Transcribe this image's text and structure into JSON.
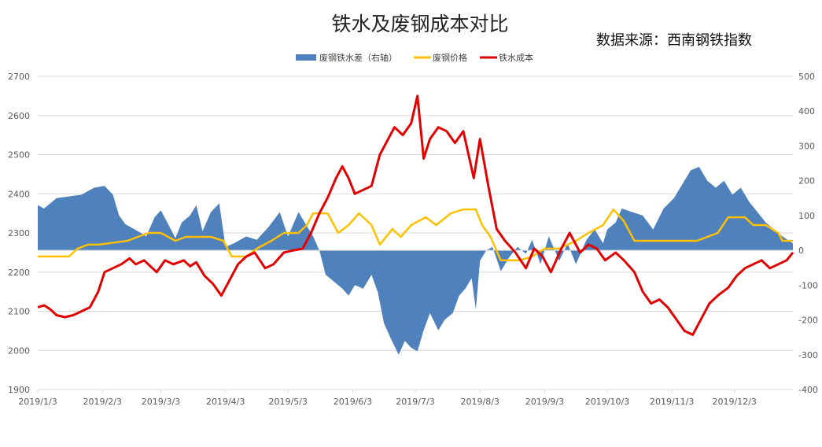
{
  "title": "铁水及废钢成本对比",
  "source": "数据来源：西南钢铁指数",
  "colors": {
    "diff": "#4f81bd",
    "scrap": "#ffc000",
    "iron": "#e00000",
    "grid": "#d9d9d9"
  },
  "chart_data": {
    "type": "line",
    "x_type": "date",
    "x_range": [
      "2019-01-03",
      "2019-12-31"
    ],
    "xticks": [
      "2019/1/3",
      "2019/2/3",
      "2019/3/3",
      "2019/4/3",
      "2019/5/3",
      "2019/6/3",
      "2019/7/3",
      "2019/8/3",
      "2019/9/3",
      "2019/10/3",
      "2019/11/3",
      "2019/12/3"
    ],
    "ylim_left": [
      1900,
      2700
    ],
    "yticks_left": [
      1900,
      2000,
      2100,
      2200,
      2300,
      2400,
      2500,
      2600,
      2700
    ],
    "ylim_right": [
      -400,
      500
    ],
    "yticks_right": [
      -400,
      -300,
      -200,
      -100,
      0,
      100,
      200,
      300,
      400,
      500
    ],
    "legend_position": "top",
    "grid": true,
    "series": [
      {
        "name": "废钢铁水差（右轴）",
        "type": "area",
        "axis": "right",
        "points": [
          [
            "2019-01-03",
            130
          ],
          [
            "2019-01-06",
            120
          ],
          [
            "2019-01-09",
            135
          ],
          [
            "2019-01-12",
            150
          ],
          [
            "2019-01-18",
            155
          ],
          [
            "2019-01-24",
            160
          ],
          [
            "2019-01-30",
            180
          ],
          [
            "2019-02-04",
            185
          ],
          [
            "2019-02-08",
            160
          ],
          [
            "2019-02-11",
            100
          ],
          [
            "2019-02-14",
            75
          ],
          [
            "2019-02-20",
            55
          ],
          [
            "2019-02-24",
            40
          ],
          [
            "2019-02-28",
            95
          ],
          [
            "2019-03-03",
            115
          ],
          [
            "2019-03-07",
            70
          ],
          [
            "2019-03-10",
            35
          ],
          [
            "2019-03-13",
            80
          ],
          [
            "2019-03-17",
            100
          ],
          [
            "2019-03-20",
            130
          ],
          [
            "2019-03-23",
            55
          ],
          [
            "2019-03-27",
            110
          ],
          [
            "2019-03-31",
            135
          ],
          [
            "2019-04-03",
            10
          ],
          [
            "2019-04-07",
            20
          ],
          [
            "2019-04-13",
            40
          ],
          [
            "2019-04-18",
            30
          ],
          [
            "2019-04-24",
            70
          ],
          [
            "2019-04-29",
            110
          ],
          [
            "2019-05-03",
            40
          ],
          [
            "2019-05-08",
            110
          ],
          [
            "2019-05-12",
            70
          ],
          [
            "2019-05-15",
            40
          ],
          [
            "2019-05-18",
            0
          ],
          [
            "2019-05-21",
            -70
          ],
          [
            "2019-05-25",
            -90
          ],
          [
            "2019-05-29",
            -110
          ],
          [
            "2019-06-01",
            -130
          ],
          [
            "2019-06-04",
            -100
          ],
          [
            "2019-06-08",
            -110
          ],
          [
            "2019-06-12",
            -70
          ],
          [
            "2019-06-15",
            -120
          ],
          [
            "2019-06-18",
            -210
          ],
          [
            "2019-06-21",
            -250
          ],
          [
            "2019-06-25",
            -300
          ],
          [
            "2019-06-28",
            -260
          ],
          [
            "2019-07-01",
            -280
          ],
          [
            "2019-07-04",
            -290
          ],
          [
            "2019-07-07",
            -230
          ],
          [
            "2019-07-10",
            -180
          ],
          [
            "2019-07-14",
            -230
          ],
          [
            "2019-07-17",
            -200
          ],
          [
            "2019-07-21",
            -180
          ],
          [
            "2019-07-24",
            -130
          ],
          [
            "2019-07-27",
            -110
          ],
          [
            "2019-07-30",
            -80
          ],
          [
            "2019-08-01",
            -170
          ],
          [
            "2019-08-03",
            -30
          ],
          [
            "2019-08-06",
            0
          ],
          [
            "2019-08-09",
            10
          ],
          [
            "2019-08-13",
            -60
          ],
          [
            "2019-08-17",
            -20
          ],
          [
            "2019-08-21",
            10
          ],
          [
            "2019-08-25",
            -10
          ],
          [
            "2019-08-28",
            30
          ],
          [
            "2019-09-01",
            -40
          ],
          [
            "2019-09-05",
            40
          ],
          [
            "2019-09-10",
            -30
          ],
          [
            "2019-09-14",
            20
          ],
          [
            "2019-09-18",
            -40
          ],
          [
            "2019-09-23",
            30
          ],
          [
            "2019-09-27",
            60
          ],
          [
            "2019-10-01",
            20
          ],
          [
            "2019-10-03",
            60
          ],
          [
            "2019-10-07",
            80
          ],
          [
            "2019-10-10",
            120
          ],
          [
            "2019-10-15",
            110
          ],
          [
            "2019-10-20",
            100
          ],
          [
            "2019-10-25",
            60
          ],
          [
            "2019-10-30",
            120
          ],
          [
            "2019-11-04",
            150
          ],
          [
            "2019-11-08",
            190
          ],
          [
            "2019-11-12",
            230
          ],
          [
            "2019-11-16",
            240
          ],
          [
            "2019-11-20",
            200
          ],
          [
            "2019-11-24",
            180
          ],
          [
            "2019-11-28",
            200
          ],
          [
            "2019-12-02",
            160
          ],
          [
            "2019-12-06",
            180
          ],
          [
            "2019-12-10",
            140
          ],
          [
            "2019-12-14",
            110
          ],
          [
            "2019-12-18",
            80
          ],
          [
            "2019-12-22",
            60
          ],
          [
            "2019-12-26",
            40
          ],
          [
            "2019-12-31",
            20
          ]
        ]
      },
      {
        "name": "废钢价格",
        "type": "line",
        "axis": "left",
        "points": [
          [
            "2019-01-03",
            2240
          ],
          [
            "2019-01-18",
            2240
          ],
          [
            "2019-01-22",
            2260
          ],
          [
            "2019-01-27",
            2270
          ],
          [
            "2019-02-01",
            2270
          ],
          [
            "2019-02-15",
            2280
          ],
          [
            "2019-02-25",
            2300
          ],
          [
            "2019-03-03",
            2300
          ],
          [
            "2019-03-10",
            2280
          ],
          [
            "2019-03-15",
            2290
          ],
          [
            "2019-03-27",
            2290
          ],
          [
            "2019-04-02",
            2280
          ],
          [
            "2019-04-06",
            2240
          ],
          [
            "2019-04-13",
            2240
          ],
          [
            "2019-04-18",
            2260
          ],
          [
            "2019-04-25",
            2280
          ],
          [
            "2019-05-01",
            2300
          ],
          [
            "2019-05-08",
            2300
          ],
          [
            "2019-05-12",
            2320
          ],
          [
            "2019-05-15",
            2350
          ],
          [
            "2019-05-22",
            2350
          ],
          [
            "2019-05-27",
            2300
          ],
          [
            "2019-06-01",
            2320
          ],
          [
            "2019-06-06",
            2350
          ],
          [
            "2019-06-12",
            2320
          ],
          [
            "2019-06-16",
            2270
          ],
          [
            "2019-06-22",
            2310
          ],
          [
            "2019-06-26",
            2290
          ],
          [
            "2019-07-01",
            2320
          ],
          [
            "2019-07-08",
            2340
          ],
          [
            "2019-07-13",
            2320
          ],
          [
            "2019-07-20",
            2350
          ],
          [
            "2019-07-26",
            2360
          ],
          [
            "2019-08-01",
            2360
          ],
          [
            "2019-08-04",
            2320
          ],
          [
            "2019-08-08",
            2290
          ],
          [
            "2019-08-13",
            2230
          ],
          [
            "2019-08-22",
            2230
          ],
          [
            "2019-08-28",
            2240
          ],
          [
            "2019-09-03",
            2260
          ],
          [
            "2019-09-10",
            2260
          ],
          [
            "2019-09-18",
            2280
          ],
          [
            "2019-09-24",
            2300
          ],
          [
            "2019-10-01",
            2320
          ],
          [
            "2019-10-06",
            2360
          ],
          [
            "2019-10-11",
            2330
          ],
          [
            "2019-10-16",
            2280
          ],
          [
            "2019-10-28",
            2280
          ],
          [
            "2019-11-15",
            2280
          ],
          [
            "2019-11-25",
            2300
          ],
          [
            "2019-11-30",
            2340
          ],
          [
            "2019-12-08",
            2340
          ],
          [
            "2019-12-12",
            2320
          ],
          [
            "2019-12-18",
            2320
          ],
          [
            "2019-12-24",
            2300
          ],
          [
            "2019-12-26",
            2280
          ],
          [
            "2019-12-31",
            2280
          ]
        ]
      },
      {
        "name": "铁水成本",
        "type": "line",
        "axis": "left",
        "points": [
          [
            "2019-01-03",
            2110
          ],
          [
            "2019-01-06",
            2115
          ],
          [
            "2019-01-09",
            2105
          ],
          [
            "2019-01-12",
            2090
          ],
          [
            "2019-01-16",
            2085
          ],
          [
            "2019-01-20",
            2090
          ],
          [
            "2019-01-24",
            2100
          ],
          [
            "2019-01-28",
            2110
          ],
          [
            "2019-02-01",
            2150
          ],
          [
            "2019-02-04",
            2200
          ],
          [
            "2019-02-08",
            2210
          ],
          [
            "2019-02-12",
            2220
          ],
          [
            "2019-02-16",
            2235
          ],
          [
            "2019-02-19",
            2220
          ],
          [
            "2019-02-23",
            2230
          ],
          [
            "2019-02-26",
            2215
          ],
          [
            "2019-03-01",
            2200
          ],
          [
            "2019-03-05",
            2230
          ],
          [
            "2019-03-09",
            2220
          ],
          [
            "2019-03-14",
            2230
          ],
          [
            "2019-03-17",
            2215
          ],
          [
            "2019-03-20",
            2225
          ],
          [
            "2019-03-24",
            2190
          ],
          [
            "2019-03-28",
            2170
          ],
          [
            "2019-04-01",
            2140
          ],
          [
            "2019-04-05",
            2180
          ],
          [
            "2019-04-09",
            2220
          ],
          [
            "2019-04-13",
            2240
          ],
          [
            "2019-04-17",
            2250
          ],
          [
            "2019-04-22",
            2210
          ],
          [
            "2019-04-26",
            2220
          ],
          [
            "2019-05-01",
            2250
          ],
          [
            "2019-05-05",
            2255
          ],
          [
            "2019-05-10",
            2260
          ],
          [
            "2019-05-14",
            2300
          ],
          [
            "2019-05-18",
            2350
          ],
          [
            "2019-05-22",
            2390
          ],
          [
            "2019-05-26",
            2440
          ],
          [
            "2019-05-29",
            2470
          ],
          [
            "2019-06-01",
            2440
          ],
          [
            "2019-06-04",
            2400
          ],
          [
            "2019-06-08",
            2410
          ],
          [
            "2019-06-12",
            2420
          ],
          [
            "2019-06-16",
            2500
          ],
          [
            "2019-06-19",
            2530
          ],
          [
            "2019-06-23",
            2570
          ],
          [
            "2019-06-27",
            2550
          ],
          [
            "2019-07-01",
            2580
          ],
          [
            "2019-07-04",
            2650
          ],
          [
            "2019-07-07",
            2490
          ],
          [
            "2019-07-10",
            2540
          ],
          [
            "2019-07-14",
            2570
          ],
          [
            "2019-07-18",
            2560
          ],
          [
            "2019-07-22",
            2530
          ],
          [
            "2019-07-26",
            2560
          ],
          [
            "2019-07-31",
            2440
          ],
          [
            "2019-08-03",
            2540
          ],
          [
            "2019-08-07",
            2420
          ],
          [
            "2019-08-11",
            2310
          ],
          [
            "2019-08-15",
            2280
          ],
          [
            "2019-08-20",
            2250
          ],
          [
            "2019-08-25",
            2210
          ],
          [
            "2019-08-29",
            2260
          ],
          [
            "2019-09-02",
            2240
          ],
          [
            "2019-09-06",
            2200
          ],
          [
            "2019-09-11",
            2260
          ],
          [
            "2019-09-15",
            2300
          ],
          [
            "2019-09-20",
            2250
          ],
          [
            "2019-09-24",
            2270
          ],
          [
            "2019-09-28",
            2260
          ],
          [
            "2019-10-02",
            2230
          ],
          [
            "2019-10-07",
            2250
          ],
          [
            "2019-10-11",
            2230
          ],
          [
            "2019-10-16",
            2200
          ],
          [
            "2019-10-20",
            2150
          ],
          [
            "2019-10-24",
            2120
          ],
          [
            "2019-10-28",
            2130
          ],
          [
            "2019-11-01",
            2110
          ],
          [
            "2019-11-05",
            2080
          ],
          [
            "2019-11-09",
            2050
          ],
          [
            "2019-11-13",
            2040
          ],
          [
            "2019-11-17",
            2080
          ],
          [
            "2019-11-21",
            2120
          ],
          [
            "2019-11-25",
            2140
          ],
          [
            "2019-11-30",
            2160
          ],
          [
            "2019-12-04",
            2190
          ],
          [
            "2019-12-08",
            2210
          ],
          [
            "2019-12-12",
            2220
          ],
          [
            "2019-12-16",
            2230
          ],
          [
            "2019-12-20",
            2210
          ],
          [
            "2019-12-24",
            2220
          ],
          [
            "2019-12-28",
            2230
          ],
          [
            "2019-12-31",
            2250
          ]
        ]
      }
    ]
  }
}
